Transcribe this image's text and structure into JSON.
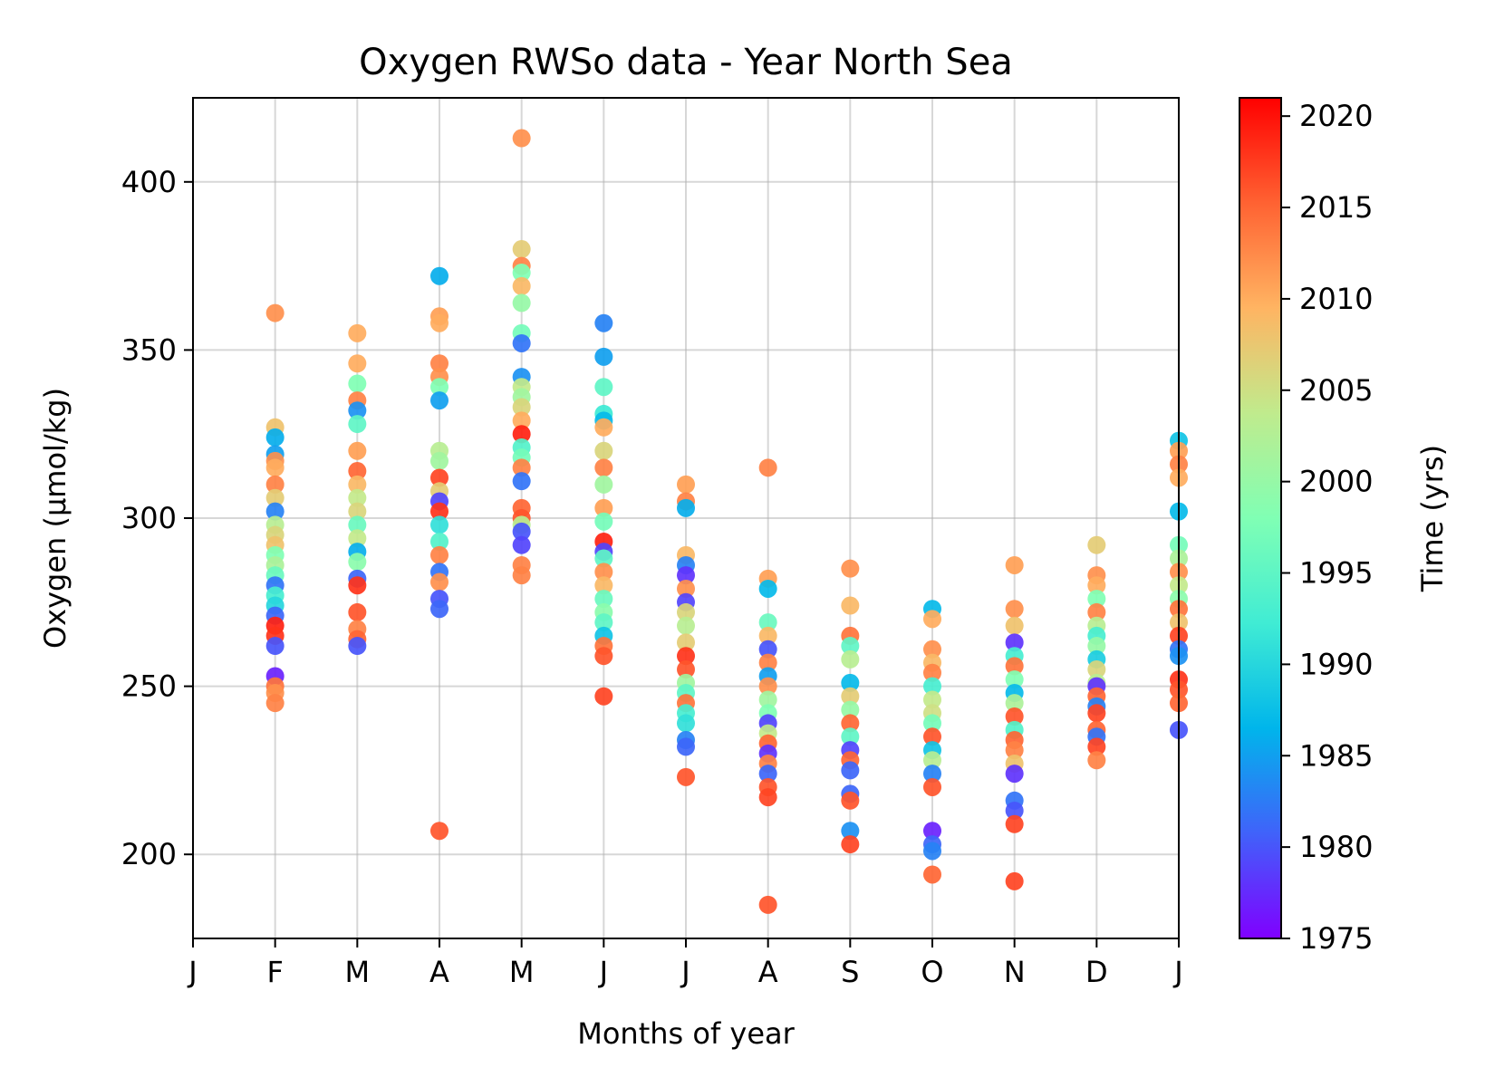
{
  "chart_data": {
    "type": "scatter",
    "title": "Oxygen RWSo data - Year North Sea",
    "xlabel": "Months of year",
    "ylabel": "Oxygen (μmol/kg)",
    "xlim": [
      0,
      12
    ],
    "ylim": [
      175,
      425
    ],
    "x_ticks": [
      {
        "v": 0,
        "label": "J"
      },
      {
        "v": 1,
        "label": "F"
      },
      {
        "v": 2,
        "label": "M"
      },
      {
        "v": 3,
        "label": "A"
      },
      {
        "v": 4,
        "label": "M"
      },
      {
        "v": 5,
        "label": "J"
      },
      {
        "v": 6,
        "label": "J"
      },
      {
        "v": 7,
        "label": "A"
      },
      {
        "v": 8,
        "label": "S"
      },
      {
        "v": 9,
        "label": "O"
      },
      {
        "v": 10,
        "label": "N"
      },
      {
        "v": 11,
        "label": "D"
      },
      {
        "v": 12,
        "label": "J"
      }
    ],
    "y_ticks": [
      200,
      250,
      300,
      350,
      400
    ],
    "grid": true,
    "colorbar": {
      "label": "Time (yrs)",
      "range": [
        1975,
        2021
      ],
      "ticks": [
        1975,
        1980,
        1985,
        1990,
        1995,
        2000,
        2005,
        2010,
        2015,
        2020
      ],
      "colormap": "rainbow"
    },
    "points": [
      {
        "x": 1,
        "y": 361,
        "t": 2012
      },
      {
        "x": 1,
        "y": 327,
        "t": 2008
      },
      {
        "x": 1,
        "y": 324,
        "t": 1986
      },
      {
        "x": 1,
        "y": 319,
        "t": 1985
      },
      {
        "x": 1,
        "y": 317,
        "t": 2012
      },
      {
        "x": 1,
        "y": 315,
        "t": 2010
      },
      {
        "x": 1,
        "y": 310,
        "t": 2013
      },
      {
        "x": 1,
        "y": 306,
        "t": 2007
      },
      {
        "x": 1,
        "y": 302,
        "t": 1983
      },
      {
        "x": 1,
        "y": 298,
        "t": 2003
      },
      {
        "x": 1,
        "y": 295,
        "t": 2006
      },
      {
        "x": 1,
        "y": 292,
        "t": 2008
      },
      {
        "x": 1,
        "y": 289,
        "t": 1998
      },
      {
        "x": 1,
        "y": 286,
        "t": 2002
      },
      {
        "x": 1,
        "y": 283,
        "t": 1996
      },
      {
        "x": 1,
        "y": 280,
        "t": 1982
      },
      {
        "x": 1,
        "y": 277,
        "t": 1993
      },
      {
        "x": 1,
        "y": 274,
        "t": 1990
      },
      {
        "x": 1,
        "y": 271,
        "t": 1981
      },
      {
        "x": 1,
        "y": 268,
        "t": 2019
      },
      {
        "x": 1,
        "y": 265,
        "t": 2018
      },
      {
        "x": 1,
        "y": 262,
        "t": 1980
      },
      {
        "x": 1,
        "y": 253,
        "t": 1977
      },
      {
        "x": 1,
        "y": 250,
        "t": 2014
      },
      {
        "x": 1,
        "y": 248,
        "t": 2012
      },
      {
        "x": 1,
        "y": 245,
        "t": 2013
      },
      {
        "x": 2,
        "y": 355,
        "t": 2010
      },
      {
        "x": 2,
        "y": 346,
        "t": 2010
      },
      {
        "x": 2,
        "y": 340,
        "t": 1998
      },
      {
        "x": 2,
        "y": 335,
        "t": 2013
      },
      {
        "x": 2,
        "y": 332,
        "t": 1984
      },
      {
        "x": 2,
        "y": 328,
        "t": 1995
      },
      {
        "x": 2,
        "y": 320,
        "t": 2011
      },
      {
        "x": 2,
        "y": 314,
        "t": 2015
      },
      {
        "x": 2,
        "y": 310,
        "t": 2009
      },
      {
        "x": 2,
        "y": 306,
        "t": 2004
      },
      {
        "x": 2,
        "y": 302,
        "t": 2006
      },
      {
        "x": 2,
        "y": 298,
        "t": 1996
      },
      {
        "x": 2,
        "y": 294,
        "t": 2004
      },
      {
        "x": 2,
        "y": 290,
        "t": 1986
      },
      {
        "x": 2,
        "y": 287,
        "t": 1999
      },
      {
        "x": 2,
        "y": 282,
        "t": 1981
      },
      {
        "x": 2,
        "y": 280,
        "t": 2018
      },
      {
        "x": 2,
        "y": 272,
        "t": 2016
      },
      {
        "x": 2,
        "y": 267,
        "t": 2013
      },
      {
        "x": 2,
        "y": 264,
        "t": 2015
      },
      {
        "x": 2,
        "y": 262,
        "t": 1980
      },
      {
        "x": 3,
        "y": 372,
        "t": 1986
      },
      {
        "x": 3,
        "y": 360,
        "t": 2011
      },
      {
        "x": 3,
        "y": 358,
        "t": 2010
      },
      {
        "x": 3,
        "y": 346,
        "t": 2013
      },
      {
        "x": 3,
        "y": 342,
        "t": 2012
      },
      {
        "x": 3,
        "y": 339,
        "t": 1998
      },
      {
        "x": 3,
        "y": 335,
        "t": 1985
      },
      {
        "x": 3,
        "y": 320,
        "t": 2003
      },
      {
        "x": 3,
        "y": 317,
        "t": 2001
      },
      {
        "x": 3,
        "y": 312,
        "t": 2017
      },
      {
        "x": 3,
        "y": 308,
        "t": 2007
      },
      {
        "x": 3,
        "y": 305,
        "t": 1979
      },
      {
        "x": 3,
        "y": 302,
        "t": 2018
      },
      {
        "x": 3,
        "y": 298,
        "t": 1991
      },
      {
        "x": 3,
        "y": 293,
        "t": 1994
      },
      {
        "x": 3,
        "y": 289,
        "t": 2013
      },
      {
        "x": 3,
        "y": 284,
        "t": 1982
      },
      {
        "x": 3,
        "y": 281,
        "t": 2012
      },
      {
        "x": 3,
        "y": 276,
        "t": 1980
      },
      {
        "x": 3,
        "y": 273,
        "t": 1981
      },
      {
        "x": 3,
        "y": 207,
        "t": 2016
      },
      {
        "x": 4,
        "y": 413,
        "t": 2012
      },
      {
        "x": 4,
        "y": 380,
        "t": 2007
      },
      {
        "x": 4,
        "y": 375,
        "t": 2013
      },
      {
        "x": 4,
        "y": 373,
        "t": 1998
      },
      {
        "x": 4,
        "y": 369,
        "t": 2009
      },
      {
        "x": 4,
        "y": 364,
        "t": 2000
      },
      {
        "x": 4,
        "y": 355,
        "t": 1997
      },
      {
        "x": 4,
        "y": 352,
        "t": 1982
      },
      {
        "x": 4,
        "y": 342,
        "t": 1984
      },
      {
        "x": 4,
        "y": 339,
        "t": 2004
      },
      {
        "x": 4,
        "y": 336,
        "t": 2001
      },
      {
        "x": 4,
        "y": 333,
        "t": 2006
      },
      {
        "x": 4,
        "y": 329,
        "t": 2010
      },
      {
        "x": 4,
        "y": 325,
        "t": 2019
      },
      {
        "x": 4,
        "y": 321,
        "t": 1994
      },
      {
        "x": 4,
        "y": 318,
        "t": 1997
      },
      {
        "x": 4,
        "y": 315,
        "t": 2013
      },
      {
        "x": 4,
        "y": 311,
        "t": 1982
      },
      {
        "x": 4,
        "y": 303,
        "t": 2015
      },
      {
        "x": 4,
        "y": 300,
        "t": 2016
      },
      {
        "x": 4,
        "y": 298,
        "t": 2003
      },
      {
        "x": 4,
        "y": 296,
        "t": 1980
      },
      {
        "x": 4,
        "y": 292,
        "t": 1979
      },
      {
        "x": 4,
        "y": 286,
        "t": 2013
      },
      {
        "x": 4,
        "y": 283,
        "t": 2013
      },
      {
        "x": 5,
        "y": 358,
        "t": 1983
      },
      {
        "x": 5,
        "y": 348,
        "t": 1985
      },
      {
        "x": 5,
        "y": 339,
        "t": 1995
      },
      {
        "x": 5,
        "y": 331,
        "t": 1992
      },
      {
        "x": 5,
        "y": 329,
        "t": 1987
      },
      {
        "x": 5,
        "y": 327,
        "t": 2010
      },
      {
        "x": 5,
        "y": 320,
        "t": 2006
      },
      {
        "x": 5,
        "y": 315,
        "t": 2013
      },
      {
        "x": 5,
        "y": 310,
        "t": 2001
      },
      {
        "x": 5,
        "y": 303,
        "t": 2011
      },
      {
        "x": 5,
        "y": 299,
        "t": 1997
      },
      {
        "x": 5,
        "y": 293,
        "t": 2019
      },
      {
        "x": 5,
        "y": 290,
        "t": 1979
      },
      {
        "x": 5,
        "y": 288,
        "t": 1995
      },
      {
        "x": 5,
        "y": 284,
        "t": 2012
      },
      {
        "x": 5,
        "y": 280,
        "t": 2009
      },
      {
        "x": 5,
        "y": 276,
        "t": 1996
      },
      {
        "x": 5,
        "y": 272,
        "t": 1999
      },
      {
        "x": 5,
        "y": 269,
        "t": 1995
      },
      {
        "x": 5,
        "y": 265,
        "t": 1988
      },
      {
        "x": 5,
        "y": 262,
        "t": 2014
      },
      {
        "x": 5,
        "y": 259,
        "t": 2016
      },
      {
        "x": 5,
        "y": 247,
        "t": 2017
      },
      {
        "x": 6,
        "y": 310,
        "t": 2011
      },
      {
        "x": 6,
        "y": 305,
        "t": 2013
      },
      {
        "x": 6,
        "y": 303,
        "t": 1986
      },
      {
        "x": 6,
        "y": 289,
        "t": 2009
      },
      {
        "x": 6,
        "y": 286,
        "t": 1983
      },
      {
        "x": 6,
        "y": 283,
        "t": 1978
      },
      {
        "x": 6,
        "y": 279,
        "t": 2012
      },
      {
        "x": 6,
        "y": 275,
        "t": 1979
      },
      {
        "x": 6,
        "y": 272,
        "t": 2006
      },
      {
        "x": 6,
        "y": 268,
        "t": 2003
      },
      {
        "x": 6,
        "y": 263,
        "t": 2007
      },
      {
        "x": 6,
        "y": 259,
        "t": 2018
      },
      {
        "x": 6,
        "y": 255,
        "t": 2016
      },
      {
        "x": 6,
        "y": 251,
        "t": 2001
      },
      {
        "x": 6,
        "y": 248,
        "t": 1995
      },
      {
        "x": 6,
        "y": 245,
        "t": 2014
      },
      {
        "x": 6,
        "y": 242,
        "t": 1993
      },
      {
        "x": 6,
        "y": 239,
        "t": 1991
      },
      {
        "x": 6,
        "y": 234,
        "t": 1983
      },
      {
        "x": 6,
        "y": 232,
        "t": 1981
      },
      {
        "x": 6,
        "y": 223,
        "t": 2016
      },
      {
        "x": 7,
        "y": 315,
        "t": 2013
      },
      {
        "x": 7,
        "y": 282,
        "t": 2011
      },
      {
        "x": 7,
        "y": 279,
        "t": 1987
      },
      {
        "x": 7,
        "y": 269,
        "t": 1996
      },
      {
        "x": 7,
        "y": 265,
        "t": 2009
      },
      {
        "x": 7,
        "y": 261,
        "t": 1980
      },
      {
        "x": 7,
        "y": 257,
        "t": 2013
      },
      {
        "x": 7,
        "y": 253,
        "t": 1985
      },
      {
        "x": 7,
        "y": 250,
        "t": 2012
      },
      {
        "x": 7,
        "y": 246,
        "t": 2001
      },
      {
        "x": 7,
        "y": 242,
        "t": 1998
      },
      {
        "x": 7,
        "y": 239,
        "t": 1979
      },
      {
        "x": 7,
        "y": 236,
        "t": 2004
      },
      {
        "x": 7,
        "y": 233,
        "t": 2015
      },
      {
        "x": 7,
        "y": 230,
        "t": 1978
      },
      {
        "x": 7,
        "y": 227,
        "t": 2013
      },
      {
        "x": 7,
        "y": 224,
        "t": 1981
      },
      {
        "x": 7,
        "y": 220,
        "t": 2016
      },
      {
        "x": 7,
        "y": 217,
        "t": 2017
      },
      {
        "x": 7,
        "y": 185,
        "t": 2016
      },
      {
        "x": 8,
        "y": 285,
        "t": 2012
      },
      {
        "x": 8,
        "y": 274,
        "t": 2009
      },
      {
        "x": 8,
        "y": 265,
        "t": 2014
      },
      {
        "x": 8,
        "y": 262,
        "t": 1995
      },
      {
        "x": 8,
        "y": 258,
        "t": 2003
      },
      {
        "x": 8,
        "y": 251,
        "t": 1987
      },
      {
        "x": 8,
        "y": 247,
        "t": 2007
      },
      {
        "x": 8,
        "y": 243,
        "t": 2000
      },
      {
        "x": 8,
        "y": 239,
        "t": 2015
      },
      {
        "x": 8,
        "y": 235,
        "t": 1995
      },
      {
        "x": 8,
        "y": 231,
        "t": 1979
      },
      {
        "x": 8,
        "y": 228,
        "t": 2015
      },
      {
        "x": 8,
        "y": 225,
        "t": 1981
      },
      {
        "x": 8,
        "y": 218,
        "t": 1981
      },
      {
        "x": 8,
        "y": 216,
        "t": 2016
      },
      {
        "x": 8,
        "y": 207,
        "t": 1984
      },
      {
        "x": 8,
        "y": 203,
        "t": 2017
      },
      {
        "x": 9,
        "y": 273,
        "t": 1987
      },
      {
        "x": 9,
        "y": 270,
        "t": 2010
      },
      {
        "x": 9,
        "y": 261,
        "t": 2012
      },
      {
        "x": 9,
        "y": 257,
        "t": 2009
      },
      {
        "x": 9,
        "y": 254,
        "t": 2013
      },
      {
        "x": 9,
        "y": 250,
        "t": 1993
      },
      {
        "x": 9,
        "y": 246,
        "t": 2004
      },
      {
        "x": 9,
        "y": 242,
        "t": 2005
      },
      {
        "x": 9,
        "y": 239,
        "t": 1997
      },
      {
        "x": 9,
        "y": 235,
        "t": 2016
      },
      {
        "x": 9,
        "y": 231,
        "t": 1988
      },
      {
        "x": 9,
        "y": 228,
        "t": 2003
      },
      {
        "x": 9,
        "y": 224,
        "t": 1983
      },
      {
        "x": 9,
        "y": 220,
        "t": 2016
      },
      {
        "x": 9,
        "y": 207,
        "t": 1977
      },
      {
        "x": 9,
        "y": 203,
        "t": 1981
      },
      {
        "x": 9,
        "y": 201,
        "t": 1983
      },
      {
        "x": 9,
        "y": 194,
        "t": 2015
      },
      {
        "x": 10,
        "y": 286,
        "t": 2011
      },
      {
        "x": 10,
        "y": 273,
        "t": 2012
      },
      {
        "x": 10,
        "y": 268,
        "t": 2008
      },
      {
        "x": 10,
        "y": 263,
        "t": 1978
      },
      {
        "x": 10,
        "y": 259,
        "t": 1993
      },
      {
        "x": 10,
        "y": 256,
        "t": 2014
      },
      {
        "x": 10,
        "y": 252,
        "t": 1998
      },
      {
        "x": 10,
        "y": 248,
        "t": 1987
      },
      {
        "x": 10,
        "y": 245,
        "t": 2002
      },
      {
        "x": 10,
        "y": 241,
        "t": 2016
      },
      {
        "x": 10,
        "y": 237,
        "t": 1994
      },
      {
        "x": 10,
        "y": 234,
        "t": 2015
      },
      {
        "x": 10,
        "y": 231,
        "t": 2013
      },
      {
        "x": 10,
        "y": 227,
        "t": 2008
      },
      {
        "x": 10,
        "y": 224,
        "t": 1978
      },
      {
        "x": 10,
        "y": 216,
        "t": 1982
      },
      {
        "x": 10,
        "y": 213,
        "t": 1980
      },
      {
        "x": 10,
        "y": 209,
        "t": 2017
      },
      {
        "x": 10,
        "y": 192,
        "t": 2017
      },
      {
        "x": 11,
        "y": 292,
        "t": 2007
      },
      {
        "x": 11,
        "y": 283,
        "t": 2012
      },
      {
        "x": 11,
        "y": 280,
        "t": 2010
      },
      {
        "x": 11,
        "y": 276,
        "t": 1998
      },
      {
        "x": 11,
        "y": 272,
        "t": 2013
      },
      {
        "x": 11,
        "y": 268,
        "t": 2003
      },
      {
        "x": 11,
        "y": 265,
        "t": 1993
      },
      {
        "x": 11,
        "y": 262,
        "t": 2000
      },
      {
        "x": 11,
        "y": 258,
        "t": 1989
      },
      {
        "x": 11,
        "y": 255,
        "t": 2006
      },
      {
        "x": 11,
        "y": 251,
        "t": 2003
      },
      {
        "x": 11,
        "y": 250,
        "t": 1978
      },
      {
        "x": 11,
        "y": 247,
        "t": 2015
      },
      {
        "x": 11,
        "y": 244,
        "t": 1983
      },
      {
        "x": 11,
        "y": 242,
        "t": 2017
      },
      {
        "x": 11,
        "y": 237,
        "t": 2015
      },
      {
        "x": 11,
        "y": 235,
        "t": 1982
      },
      {
        "x": 11,
        "y": 232,
        "t": 2017
      },
      {
        "x": 11,
        "y": 228,
        "t": 2013
      },
      {
        "x": 12,
        "y": 323,
        "t": 1988
      },
      {
        "x": 12,
        "y": 320,
        "t": 2011
      },
      {
        "x": 12,
        "y": 316,
        "t": 2013
      },
      {
        "x": 12,
        "y": 312,
        "t": 2010
      },
      {
        "x": 12,
        "y": 302,
        "t": 1987
      },
      {
        "x": 12,
        "y": 292,
        "t": 1997
      },
      {
        "x": 12,
        "y": 288,
        "t": 2002
      },
      {
        "x": 12,
        "y": 284,
        "t": 2012
      },
      {
        "x": 12,
        "y": 280,
        "t": 2004
      },
      {
        "x": 12,
        "y": 276,
        "t": 1999
      },
      {
        "x": 12,
        "y": 273,
        "t": 2014
      },
      {
        "x": 12,
        "y": 269,
        "t": 2008
      },
      {
        "x": 12,
        "y": 265,
        "t": 2017
      },
      {
        "x": 12,
        "y": 261,
        "t": 1982
      },
      {
        "x": 12,
        "y": 259,
        "t": 1984
      },
      {
        "x": 12,
        "y": 252,
        "t": 2018
      },
      {
        "x": 12,
        "y": 249,
        "t": 2016
      },
      {
        "x": 12,
        "y": 245,
        "t": 2015
      },
      {
        "x": 12,
        "y": 237,
        "t": 1980
      }
    ]
  }
}
